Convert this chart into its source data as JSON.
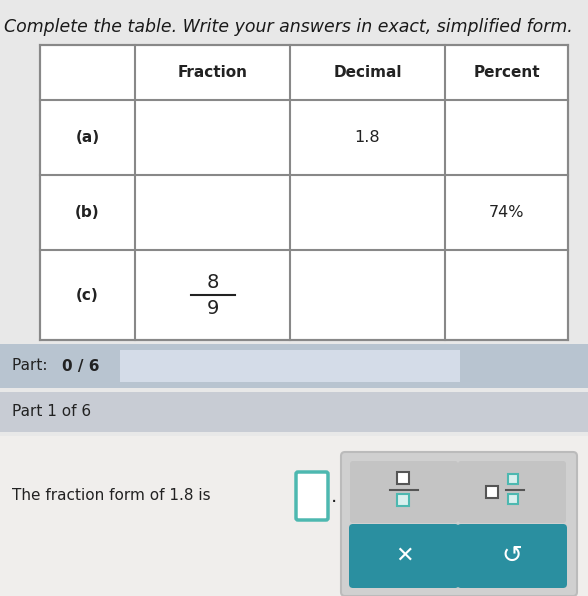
{
  "title": "Complete the table. Write your answers in exact, simplified form.",
  "title_fontsize": 12.5,
  "title_color": "#1a1a1a",
  "bg_color": "#e8e8e8",
  "table_bg": "#ffffff",
  "table_border_color": "#888888",
  "header_row": [
    "",
    "Fraction",
    "Decimal",
    "Percent"
  ],
  "rows": [
    [
      "(a)",
      "",
      "1.8",
      ""
    ],
    [
      "(b)",
      "",
      "",
      "74%"
    ],
    [
      "(c)",
      "8/9",
      "",
      ""
    ]
  ],
  "part_bar_color": "#b8c4d0",
  "part_bar_text_normal": "Part: ",
  "part_bar_text_bold": "0 / 6",
  "progress_bar_color": "#d4dce8",
  "part1_bg": "#c8ccd4",
  "part1_text": "Part 1 of 6",
  "bottom_bg": "#f0eeec",
  "question_text": "The fraction form of 1.8 is",
  "answer_box_border": "#4db8b0",
  "cell_text_color": "#222222",
  "btn_panel_bg": "#d8d8d8",
  "btn_panel_border": "#aaaaaa",
  "btn_top_bg": "#cccccc",
  "btn_icon_color_teal": "#4db8b0",
  "btn_icon_color_dark": "#444444",
  "button_color": "#2a8fa0"
}
